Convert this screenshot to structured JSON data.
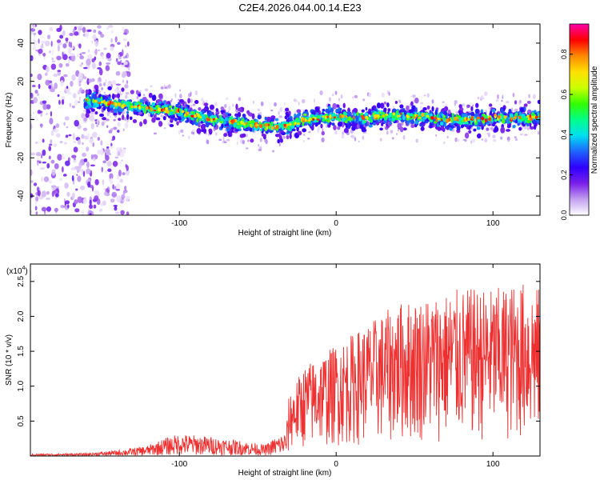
{
  "title": "C2E4.2026.044.00.14.E23",
  "chart_data": [
    {
      "type": "heatmap",
      "name": "spectrogram",
      "xlabel": "Height of straight line (km)",
      "ylabel": "Frequency (Hz)",
      "xlim": [
        -195,
        130
      ],
      "ylim": [
        -50,
        50
      ],
      "x_ticks": [
        -100,
        0,
        100
      ],
      "x_tick_labels": [
        "-100",
        "0",
        "100"
      ],
      "y_ticks": [
        -40,
        -20,
        0,
        20,
        40
      ],
      "y_tick_labels": [
        "-40",
        "-20",
        "0",
        "20",
        "40"
      ],
      "ridge": {
        "x": [
          -160,
          -150,
          -140,
          -130,
          -120,
          -110,
          -100,
          -90,
          -80,
          -70,
          -60,
          -50,
          -40,
          -30,
          -20,
          -10,
          0,
          10,
          20,
          30,
          40,
          50,
          60,
          70,
          80,
          90,
          100,
          110,
          120,
          130
        ],
        "y": [
          10,
          9,
          8,
          7,
          6,
          5,
          4,
          2,
          0,
          -1,
          -2,
          -3,
          -4,
          -3,
          0,
          1,
          2,
          1,
          1,
          2,
          2,
          2,
          1,
          0,
          0,
          0,
          1,
          1,
          1,
          1
        ]
      },
      "noise_region_x": [
        -195,
        -140
      ],
      "colorbar": {
        "label": "Normalized spectral amplitude",
        "range": [
          0.0,
          0.95
        ],
        "ticks": [
          0.0,
          0.2,
          0.4,
          0.6,
          0.8
        ],
        "tick_labels": [
          "0.0",
          "0.2",
          "0.4",
          "0.6",
          "0.8"
        ],
        "colors": [
          "#ffffff",
          "#c3a0f0",
          "#7a1fe8",
          "#2f00ff",
          "#1e64ff",
          "#00e0f0",
          "#00ff88",
          "#33ff00",
          "#ccff00",
          "#ffe000",
          "#ff8800",
          "#ff0000",
          "#ff00aa"
        ]
      }
    },
    {
      "type": "line",
      "name": "snr",
      "xlabel": "Height of straight line (km)",
      "ylabel": "SNR (10 * v/v)",
      "y_multiplier_label": "(x10",
      "y_multiplier_exp": "4",
      "xlim": [
        -195,
        130
      ],
      "ylim": [
        0,
        27500
      ],
      "x_ticks": [
        -100,
        0,
        100
      ],
      "x_tick_labels": [
        "-100",
        "0",
        "100"
      ],
      "y_ticks": [
        5000,
        10000,
        15000,
        20000,
        25000
      ],
      "y_tick_labels": [
        "0.5",
        "1.0",
        "1.5",
        "2.0",
        "2.5"
      ],
      "line_color": "#ee3030",
      "envelope": {
        "x": [
          -195,
          -160,
          -140,
          -120,
          -110,
          -100,
          -80,
          -60,
          -45,
          -40,
          -32,
          -30,
          -20,
          0,
          20,
          40,
          60,
          80,
          100,
          120,
          130
        ],
        "y": [
          300,
          400,
          800,
          1500,
          2500,
          3200,
          2800,
          2200,
          1600,
          2500,
          3500,
          9000,
          13000,
          16000,
          19000,
          22000,
          23000,
          24000,
          24000,
          25000,
          24000
        ]
      }
    }
  ]
}
